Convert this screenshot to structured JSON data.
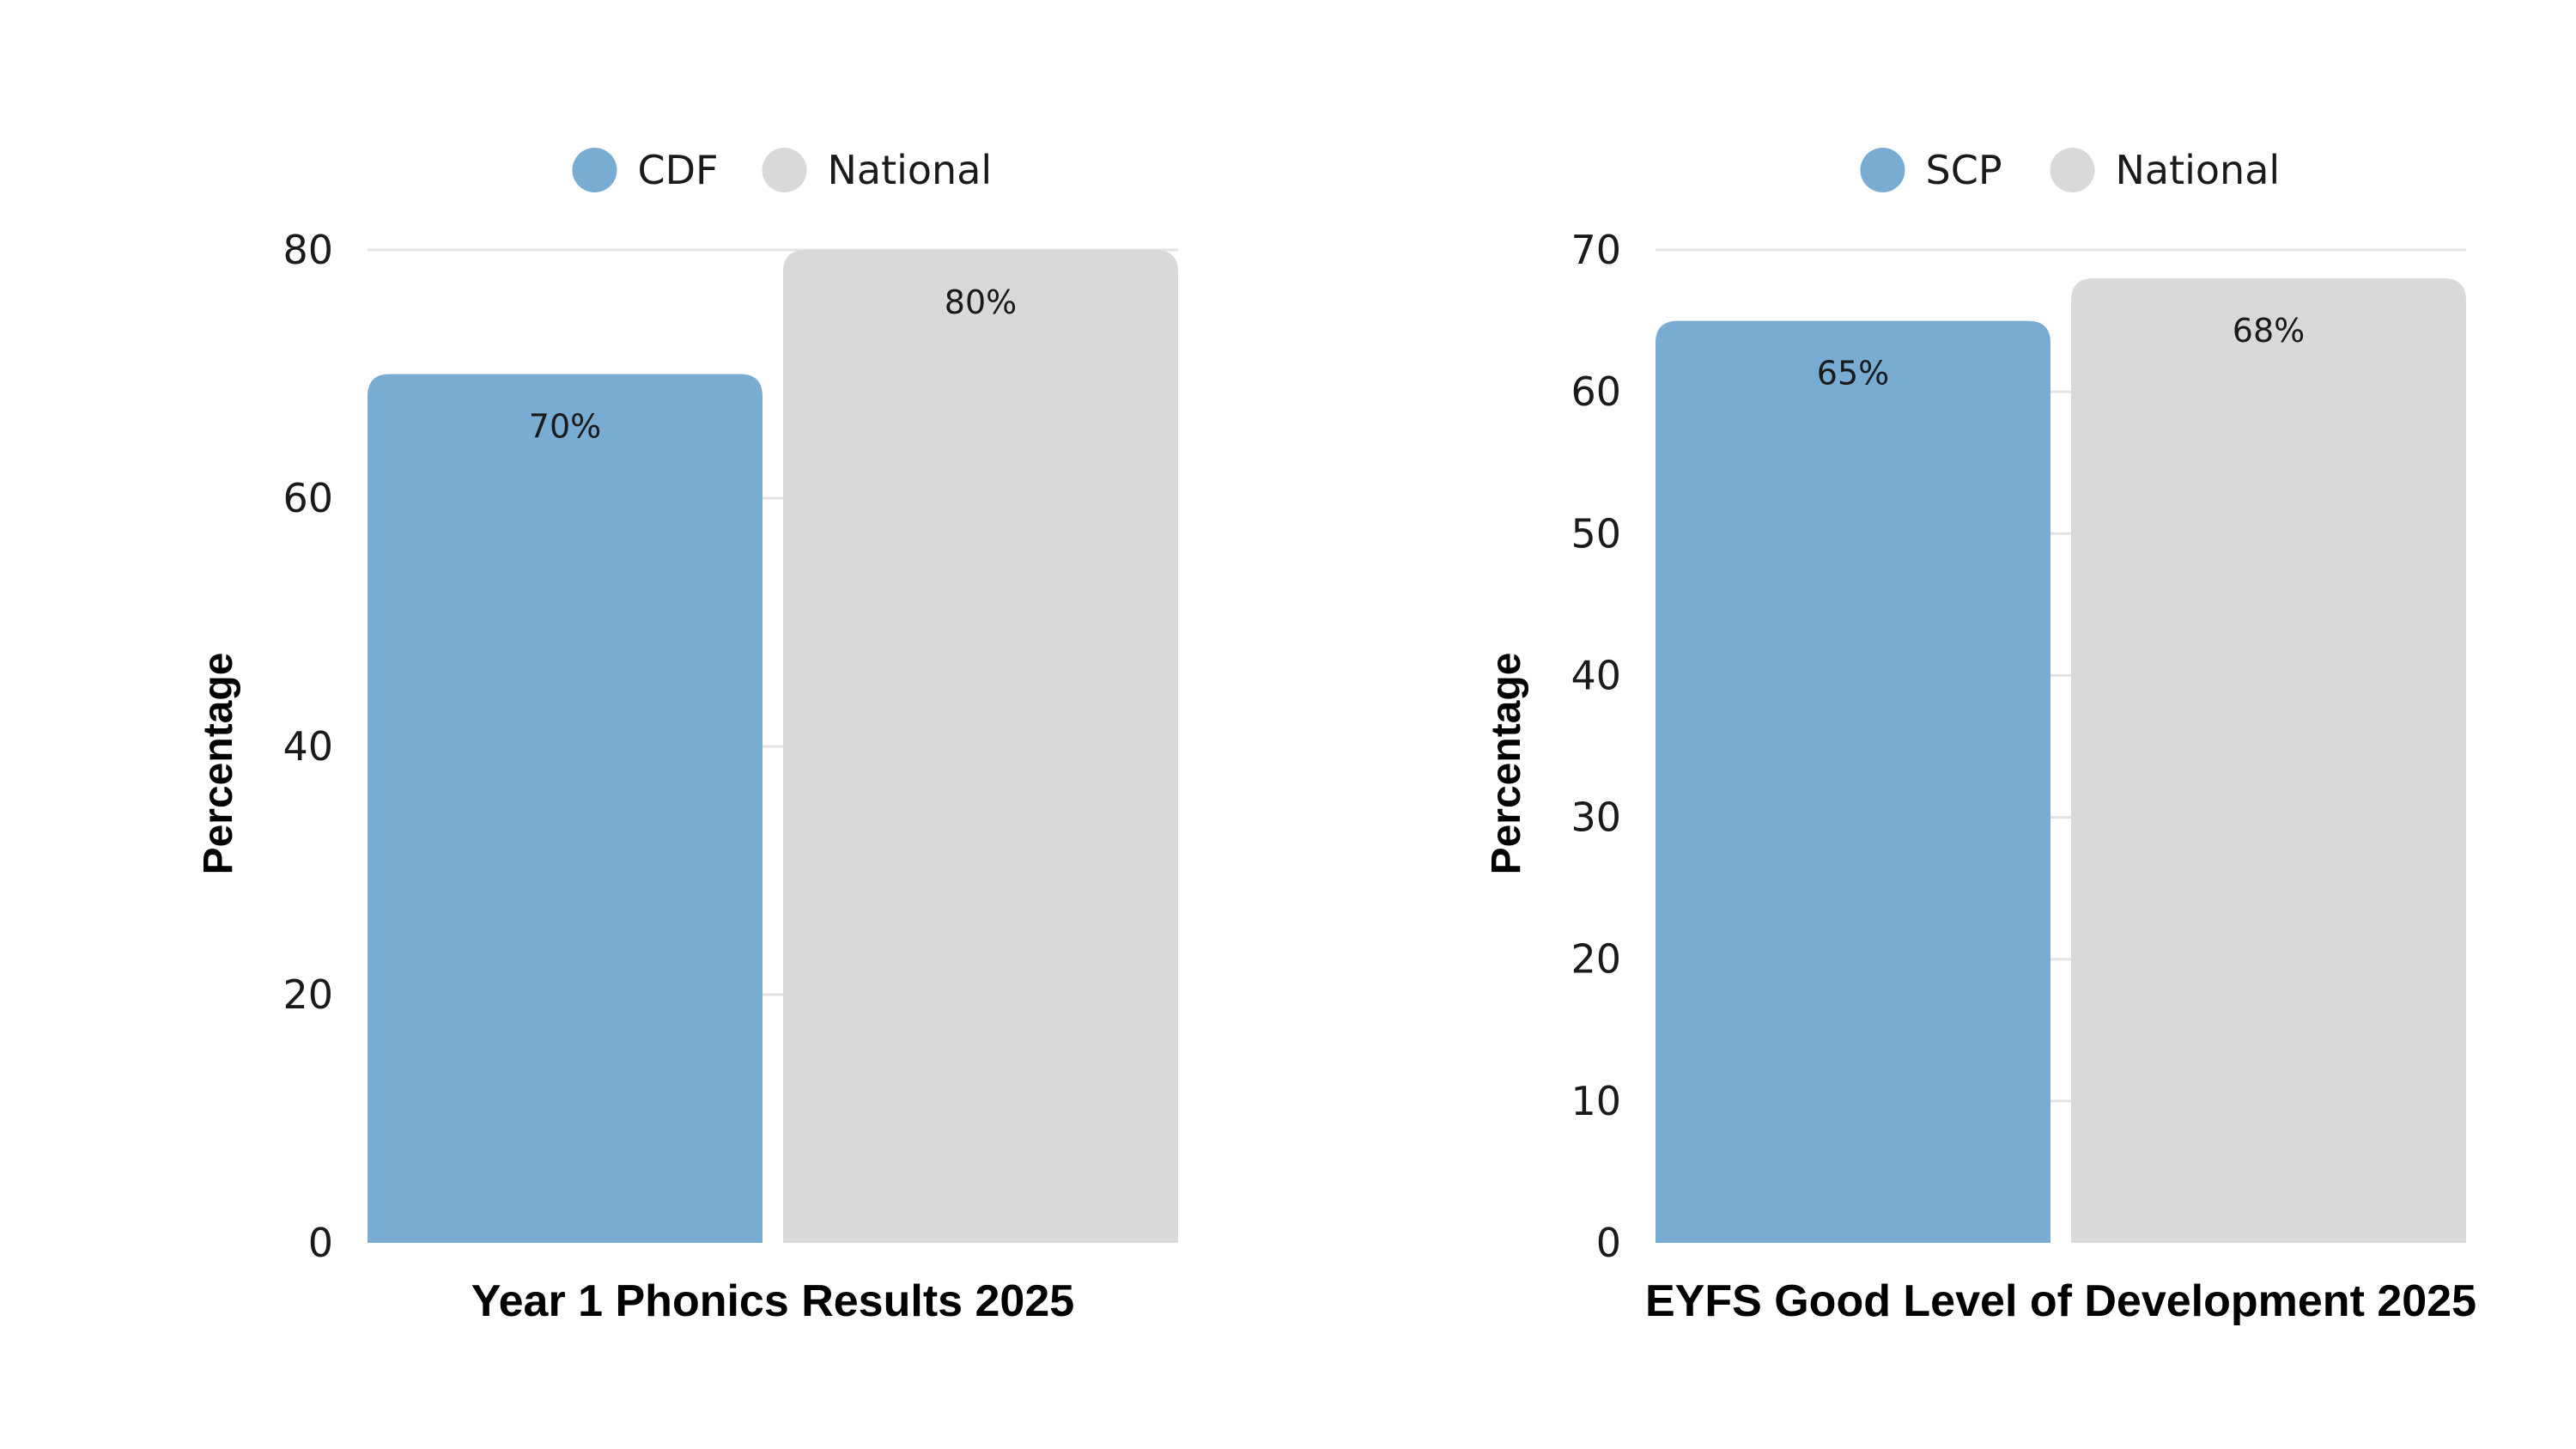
{
  "chart_data": [
    {
      "type": "bar",
      "title": "Year 1 Phonics Results 2025",
      "xlabel": "Year 1 Phonics Results 2025",
      "ylabel": "Percentage",
      "ylim": [
        0,
        80
      ],
      "yticks": [
        0,
        20,
        40,
        60,
        80
      ],
      "grid": true,
      "legend_position": "top-center",
      "series": [
        {
          "name": "CDF",
          "values": [
            70
          ],
          "label": "70%",
          "color": "#78acd3"
        },
        {
          "name": "National",
          "values": [
            80
          ],
          "label": "80%",
          "color": "#d9d9d9"
        }
      ]
    },
    {
      "type": "bar",
      "title": "EYFS Good Level of Development 2025",
      "xlabel": "EYFS Good Level of Development 2025",
      "ylabel": "Percentage",
      "ylim": [
        0,
        70
      ],
      "yticks": [
        0,
        10,
        20,
        30,
        40,
        50,
        60,
        70
      ],
      "grid": true,
      "legend_position": "top-center",
      "series": [
        {
          "name": "SCP",
          "values": [
            65
          ],
          "label": "65%",
          "color": "#78acd3"
        },
        {
          "name": "National",
          "values": [
            68
          ],
          "label": "68%",
          "color": "#d9d9d9"
        }
      ]
    }
  ],
  "colors": {
    "grid": "#e3e3e3",
    "text": "#1a1a1a"
  }
}
